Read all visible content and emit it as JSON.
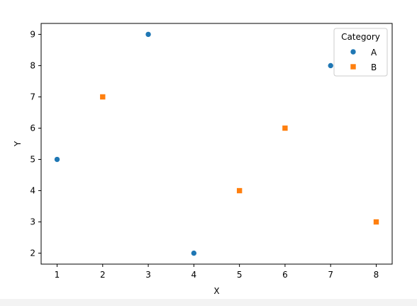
{
  "chart_data": {
    "type": "scatter",
    "xlabel": "X",
    "ylabel": "Y",
    "xlim": [
      0.65,
      8.35
    ],
    "ylim": [
      1.65,
      9.35
    ],
    "xticks": [
      1,
      2,
      3,
      4,
      5,
      6,
      7,
      8
    ],
    "yticks": [
      2,
      3,
      4,
      5,
      6,
      7,
      8,
      9
    ],
    "grid": false,
    "legend": {
      "title": "Category",
      "placement": "top-right"
    },
    "series": [
      {
        "name": "A",
        "marker": "circle",
        "color": "#1f77b4",
        "x": [
          1,
          3,
          4,
          7
        ],
        "y": [
          5,
          9,
          2,
          8
        ]
      },
      {
        "name": "B",
        "marker": "square",
        "color": "#ff7f0e",
        "x": [
          2,
          5,
          6,
          8
        ],
        "y": [
          7,
          4,
          6,
          3
        ]
      }
    ]
  }
}
